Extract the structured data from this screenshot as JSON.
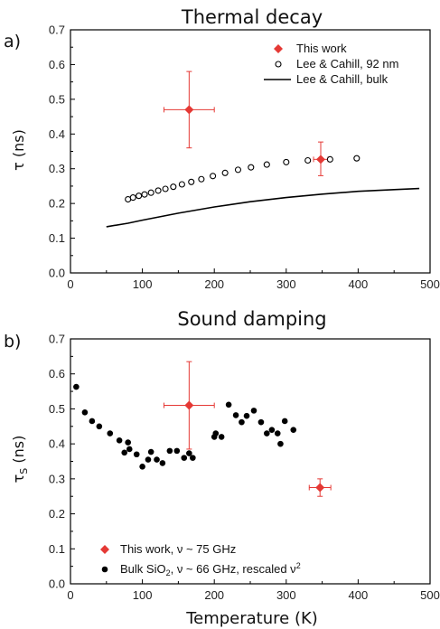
{
  "colors": {
    "this_work": "#e53935",
    "reference": "#000000",
    "axis": "#000000"
  },
  "chart_data": [
    {
      "type": "scatter",
      "panel_label": "a)",
      "title": "Thermal decay",
      "xlabel": "",
      "ylabel": "τ (ns)",
      "xlim": [
        0,
        500
      ],
      "ylim": [
        0.0,
        0.7
      ],
      "x_ticks": [
        "0",
        "100",
        "200",
        "300",
        "400",
        "500"
      ],
      "y_ticks": [
        "0.0",
        "0.1",
        "0.2",
        "0.3",
        "0.4",
        "0.5",
        "0.6",
        "0.7"
      ],
      "legend_position": "top-right",
      "series": [
        {
          "name": "This work",
          "marker": "diamond-red",
          "points": [
            {
              "x": 165,
              "y": 0.47,
              "xerr": 35,
              "yerr_low": 0.11,
              "yerr_high": 0.11
            },
            {
              "x": 348,
              "y": 0.327,
              "xerr": 10,
              "yerr_low": 0.047,
              "yerr_high": 0.05
            }
          ]
        },
        {
          "name": "Lee & Cahill, 92 nm",
          "marker": "open-circle",
          "points": [
            {
              "x": 80,
              "y": 0.212
            },
            {
              "x": 87,
              "y": 0.217
            },
            {
              "x": 95,
              "y": 0.222
            },
            {
              "x": 103,
              "y": 0.226
            },
            {
              "x": 112,
              "y": 0.231
            },
            {
              "x": 122,
              "y": 0.237
            },
            {
              "x": 132,
              "y": 0.242
            },
            {
              "x": 143,
              "y": 0.248
            },
            {
              "x": 155,
              "y": 0.255
            },
            {
              "x": 168,
              "y": 0.262
            },
            {
              "x": 182,
              "y": 0.27
            },
            {
              "x": 198,
              "y": 0.279
            },
            {
              "x": 215,
              "y": 0.288
            },
            {
              "x": 233,
              "y": 0.297
            },
            {
              "x": 251,
              "y": 0.304
            },
            {
              "x": 273,
              "y": 0.312
            },
            {
              "x": 300,
              "y": 0.319
            },
            {
              "x": 330,
              "y": 0.324
            },
            {
              "x": 361,
              "y": 0.327
            },
            {
              "x": 398,
              "y": 0.33
            }
          ]
        },
        {
          "name": "Lee & Cahill, bulk",
          "marker": "line",
          "points": [
            {
              "x": 50,
              "y": 0.133
            },
            {
              "x": 80,
              "y": 0.143
            },
            {
              "x": 100,
              "y": 0.152
            },
            {
              "x": 150,
              "y": 0.172
            },
            {
              "x": 200,
              "y": 0.19
            },
            {
              "x": 250,
              "y": 0.205
            },
            {
              "x": 300,
              "y": 0.217
            },
            {
              "x": 350,
              "y": 0.227
            },
            {
              "x": 400,
              "y": 0.235
            },
            {
              "x": 450,
              "y": 0.24
            },
            {
              "x": 485,
              "y": 0.243
            }
          ]
        }
      ]
    },
    {
      "type": "scatter",
      "panel_label": "b)",
      "title": "Sound damping",
      "xlabel": "Temperature (K)",
      "ylabel": "τS (ns)",
      "xlim": [
        0,
        500
      ],
      "ylim": [
        0.0,
        0.7
      ],
      "x_ticks": [
        "0",
        "100",
        "200",
        "300",
        "400",
        "500"
      ],
      "y_ticks": [
        "0.0",
        "0.1",
        "0.2",
        "0.3",
        "0.4",
        "0.5",
        "0.6",
        "0.7"
      ],
      "legend_position": "bottom-left",
      "series": [
        {
          "name": "This work, ν ~ 75 GHz",
          "marker": "diamond-red",
          "points": [
            {
              "x": 165,
              "y": 0.51,
              "xerr": 35,
              "yerr_low": 0.125,
              "yerr_high": 0.125
            },
            {
              "x": 347,
              "y": 0.275,
              "xerr": 15,
              "yerr_low": 0.025,
              "yerr_high": 0.025
            }
          ]
        },
        {
          "name": "Bulk SiO2, ν ~ 66 GHz, rescaled ν2",
          "marker": "filled-circle",
          "points": [
            {
              "x": 8,
              "y": 0.563
            },
            {
              "x": 20,
              "y": 0.49
            },
            {
              "x": 30,
              "y": 0.465
            },
            {
              "x": 40,
              "y": 0.45
            },
            {
              "x": 55,
              "y": 0.43
            },
            {
              "x": 68,
              "y": 0.41
            },
            {
              "x": 75,
              "y": 0.375
            },
            {
              "x": 80,
              "y": 0.404
            },
            {
              "x": 82,
              "y": 0.385
            },
            {
              "x": 92,
              "y": 0.37
            },
            {
              "x": 100,
              "y": 0.335
            },
            {
              "x": 108,
              "y": 0.355
            },
            {
              "x": 112,
              "y": 0.377
            },
            {
              "x": 120,
              "y": 0.355
            },
            {
              "x": 128,
              "y": 0.345
            },
            {
              "x": 138,
              "y": 0.38
            },
            {
              "x": 148,
              "y": 0.38
            },
            {
              "x": 158,
              "y": 0.36
            },
            {
              "x": 165,
              "y": 0.373
            },
            {
              "x": 170,
              "y": 0.36
            },
            {
              "x": 200,
              "y": 0.42
            },
            {
              "x": 202,
              "y": 0.43
            },
            {
              "x": 210,
              "y": 0.42
            },
            {
              "x": 220,
              "y": 0.512
            },
            {
              "x": 230,
              "y": 0.482
            },
            {
              "x": 238,
              "y": 0.462
            },
            {
              "x": 245,
              "y": 0.48
            },
            {
              "x": 255,
              "y": 0.495
            },
            {
              "x": 265,
              "y": 0.462
            },
            {
              "x": 273,
              "y": 0.43
            },
            {
              "x": 280,
              "y": 0.44
            },
            {
              "x": 288,
              "y": 0.43
            },
            {
              "x": 292,
              "y": 0.4
            },
            {
              "x": 298,
              "y": 0.465
            },
            {
              "x": 310,
              "y": 0.44
            }
          ]
        }
      ]
    }
  ]
}
